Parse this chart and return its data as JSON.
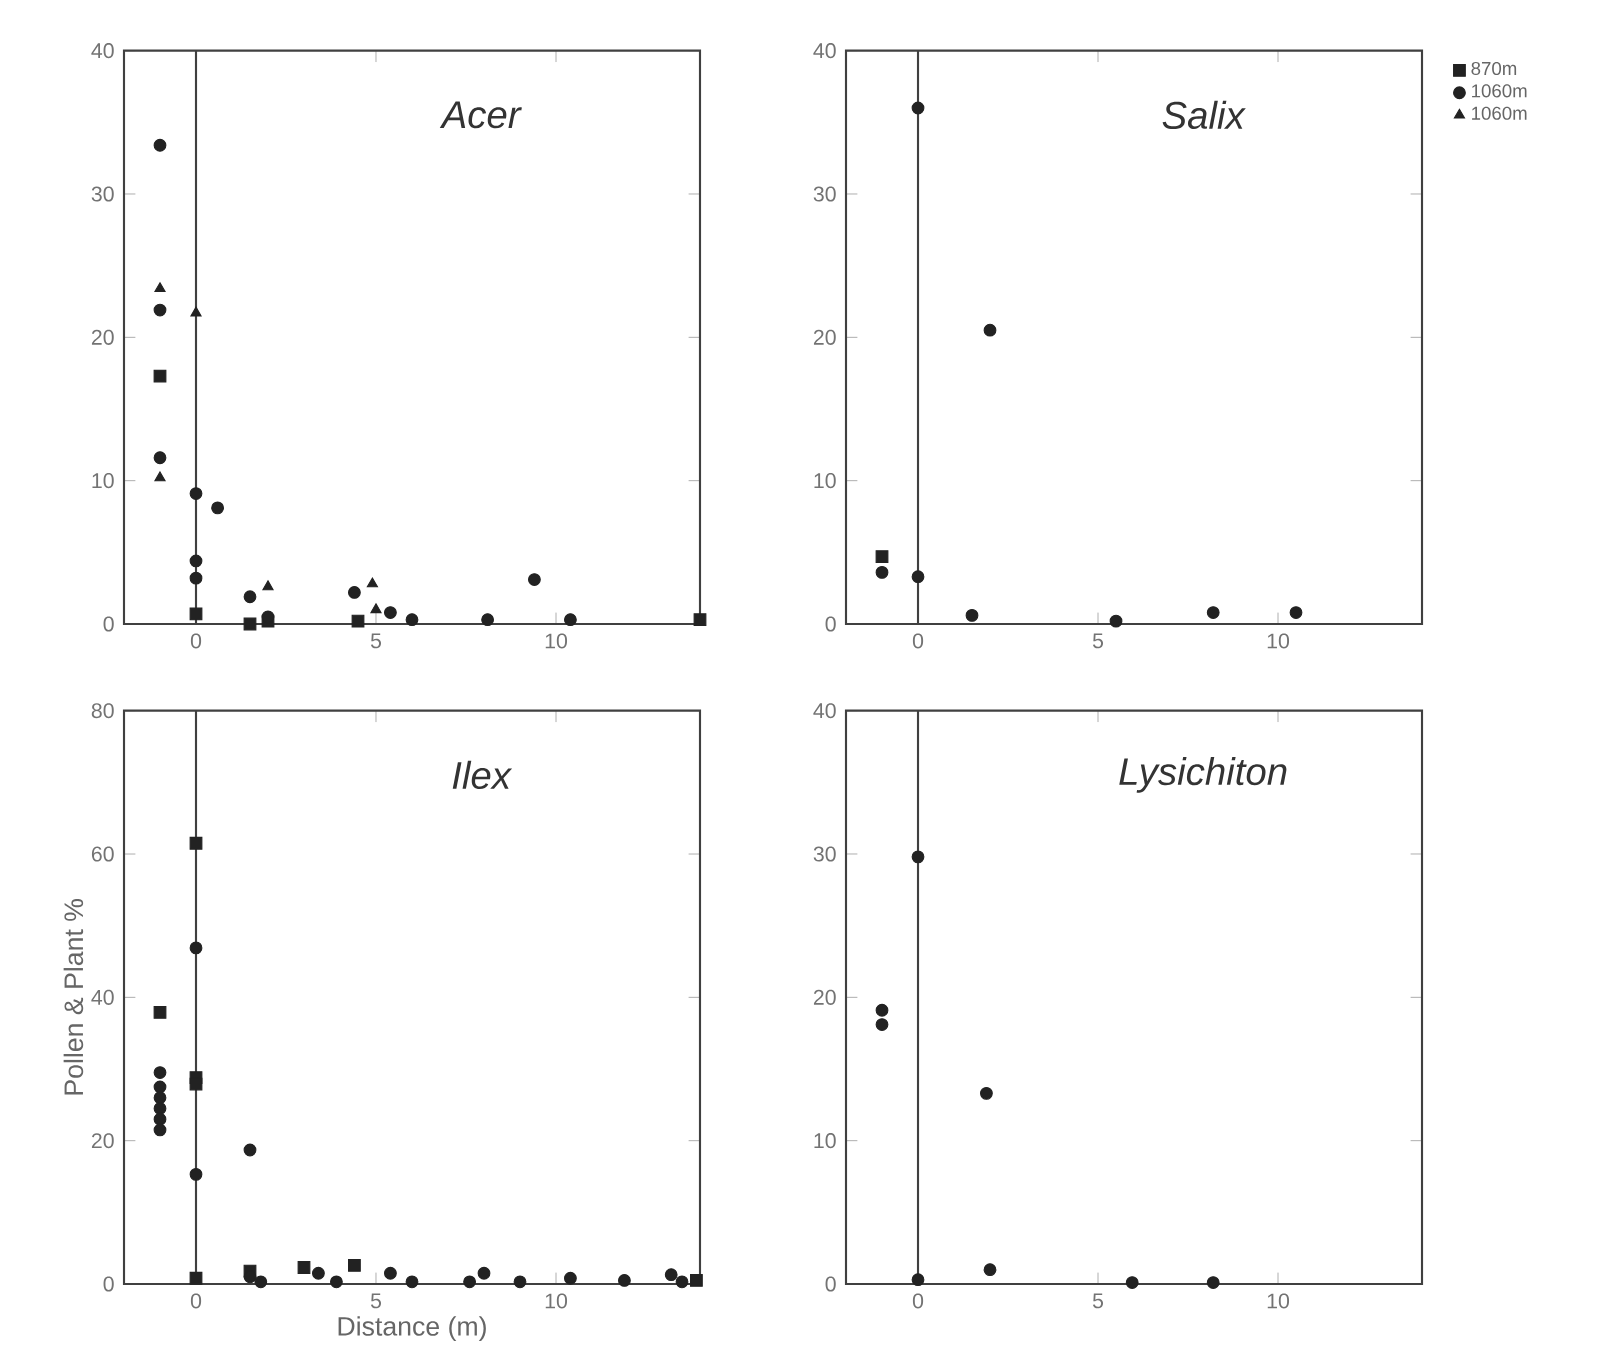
{
  "chart_data": [
    {
      "type": "scatter",
      "title": "Acer",
      "xlim": [
        -2,
        14
      ],
      "xticks": [
        0,
        5,
        10
      ],
      "ylim": [
        0,
        40
      ],
      "yticks": [
        0,
        10,
        20,
        30,
        40
      ],
      "ref_lines": [
        {
          "axis": "x",
          "value": 0
        }
      ],
      "series": [
        {
          "color": "#222222",
          "marker": "square",
          "x": [
            -1,
            0,
            1.5,
            2,
            4.5,
            14
          ],
          "values": [
            17.3,
            0.7,
            0,
            0.2,
            0.2,
            0.3
          ]
        },
        {
          "color": "#222222",
          "marker": "circle",
          "x": [
            -1,
            -1,
            -1,
            0,
            0,
            0,
            0.6,
            1.5,
            2,
            4.4,
            5.4,
            6,
            8.1,
            9.4,
            10.4
          ],
          "values": [
            33.4,
            21.9,
            11.6,
            9.1,
            4.4,
            3.2,
            8.1,
            1.9,
            0.5,
            2.2,
            0.8,
            0.3,
            0.3,
            3.1,
            0.3
          ]
        },
        {
          "color": "#222222",
          "marker": "triangle",
          "x": [
            -1,
            -1,
            0,
            2,
            4.9,
            5
          ],
          "values": [
            23.4,
            10.2,
            21.7,
            2.6,
            2.8,
            1.0
          ]
        }
      ]
    },
    {
      "type": "scatter",
      "title": "Salix",
      "xlim": [
        -2,
        14
      ],
      "xticks": [
        0,
        5,
        10
      ],
      "ylim": [
        0,
        40
      ],
      "yticks": [
        0,
        10,
        20,
        30,
        40
      ],
      "ref_lines": [
        {
          "axis": "x",
          "value": 0
        }
      ],
      "legend": "right",
      "series": [
        {
          "name": "870m",
          "color": "#222222",
          "marker": "square",
          "x": [
            -1
          ],
          "values": [
            4.7
          ]
        },
        {
          "name": "1060m",
          "color": "#222222",
          "marker": "circle",
          "x": [
            -1,
            0,
            0,
            2,
            1.5,
            5.5,
            8.2,
            10.5
          ],
          "values": [
            3.6,
            36.0,
            3.3,
            20.5,
            0.6,
            0.2,
            0.8,
            0.8
          ]
        },
        {
          "name": "1060m",
          "color": "#222222",
          "marker": "triangle"
        }
      ]
    },
    {
      "type": "scatter",
      "title": "Ilex",
      "xlabel": "Distance (m)",
      "ylabel": "Pollen & Plant %",
      "xlim": [
        -2,
        14
      ],
      "xticks": [
        0,
        5,
        10
      ],
      "ylim": [
        0,
        80
      ],
      "yticks": [
        0,
        20,
        40,
        60,
        80
      ],
      "ref_lines": [
        {
          "axis": "x",
          "value": 0
        }
      ],
      "series": [
        {
          "color": "#222222",
          "marker": "square",
          "x": [
            -1,
            0,
            0,
            0,
            0,
            1.5,
            3.0,
            4.4,
            13.9
          ],
          "values": [
            37.9,
            61.5,
            28.8,
            27.9,
            0.8,
            1.8,
            2.3,
            2.6,
            0.5
          ]
        },
        {
          "color": "#222222",
          "marker": "circle",
          "x": [
            -1,
            -1,
            -1,
            -1,
            -1,
            -1,
            0,
            0,
            1.5,
            1.5,
            1.8,
            3.4,
            3.9,
            5.4,
            6.0,
            7.6,
            8.0,
            9.0,
            10.4,
            11.9,
            13.2,
            13.5
          ],
          "values": [
            29.5,
            27.5,
            26,
            24.5,
            23,
            21.5,
            46.9,
            15.3,
            18.7,
            1.0,
            0.3,
            1.5,
            0.3,
            1.5,
            0.3,
            0.3,
            1.5,
            0.3,
            0.8,
            0.5,
            1.3,
            0.3
          ]
        }
      ]
    },
    {
      "type": "scatter",
      "title": "Lysichiton",
      "xlim": [
        -2,
        14
      ],
      "xticks": [
        0,
        5,
        10
      ],
      "ylim": [
        0,
        40
      ],
      "yticks": [
        0,
        10,
        20,
        30,
        40
      ],
      "ref_lines": [
        {
          "axis": "x",
          "value": 0
        }
      ],
      "series": [
        {
          "color": "#222222",
          "marker": "circle",
          "x": [
            -1,
            -1,
            0,
            0,
            1.9,
            2.0,
            5.95,
            8.2
          ],
          "values": [
            19.1,
            18.1,
            29.8,
            0.3,
            13.3,
            1.0,
            0.1,
            0.1
          ]
        }
      ]
    }
  ]
}
